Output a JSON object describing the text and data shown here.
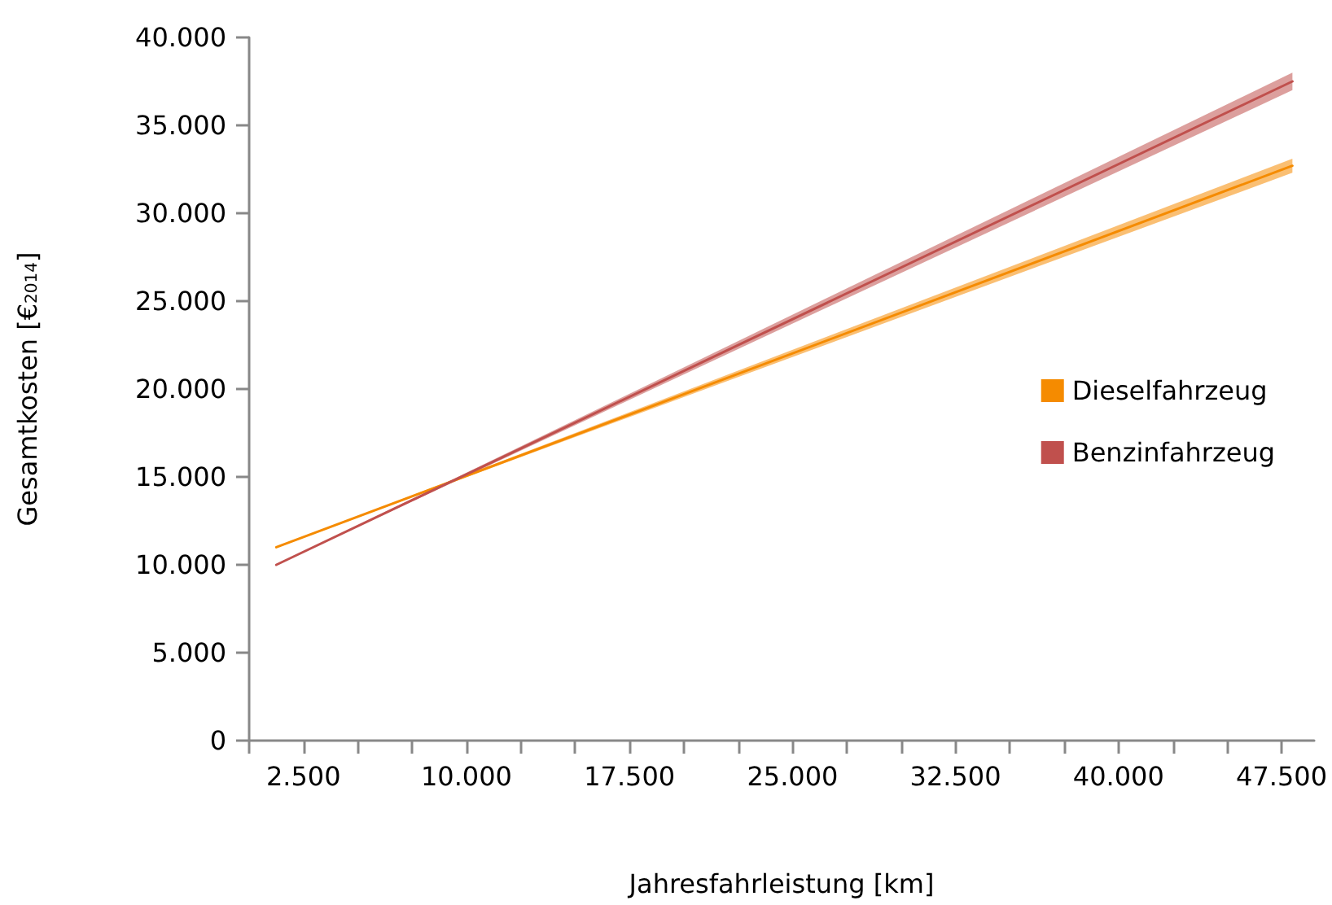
{
  "chart_data": {
    "type": "line",
    "xlabel": "Jahresfahrleistung [km]",
    "ylabel": "Gesamtkosten [€$_{2014}$]",
    "x": [
      1250,
      48000
    ],
    "series": [
      {
        "name": "Dieselfahrzeug",
        "color": "#f58b00",
        "values": [
          11000,
          32700
        ],
        "lower": [
          11000,
          32300
        ],
        "upper": [
          11000,
          33100
        ]
      },
      {
        "name": "Benzinfahrzeug",
        "color": "#c0504d",
        "values": [
          10000,
          37500
        ],
        "lower": [
          10000,
          37000
        ],
        "upper": [
          10000,
          38000
        ]
      }
    ],
    "xlim": [
      0,
      49000
    ],
    "xticks": [
      {
        "value": 0,
        "label": null
      },
      {
        "value": 2500,
        "label": "2.500"
      },
      {
        "value": 5000,
        "label": null
      },
      {
        "value": 7500,
        "label": null
      },
      {
        "value": 10000,
        "label": "10.000"
      },
      {
        "value": 12500,
        "label": null
      },
      {
        "value": 15000,
        "label": null
      },
      {
        "value": 17500,
        "label": "17.500"
      },
      {
        "value": 20000,
        "label": null
      },
      {
        "value": 22500,
        "label": null
      },
      {
        "value": 25000,
        "label": "25.000"
      },
      {
        "value": 27500,
        "label": null
      },
      {
        "value": 30000,
        "label": null
      },
      {
        "value": 32500,
        "label": "32.500"
      },
      {
        "value": 35000,
        "label": null
      },
      {
        "value": 37500,
        "label": null
      },
      {
        "value": 40000,
        "label": "40.000"
      },
      {
        "value": 42500,
        "label": null
      },
      {
        "value": 45000,
        "label": null
      },
      {
        "value": 47500,
        "label": "47.500"
      }
    ],
    "ylim": [
      0,
      40000
    ],
    "yticks": [
      {
        "value": 0,
        "label": "0"
      },
      {
        "value": 5000,
        "label": "5.000"
      },
      {
        "value": 10000,
        "label": "10.000"
      },
      {
        "value": 15000,
        "label": "15.000"
      },
      {
        "value": 20000,
        "label": "20.000"
      },
      {
        "value": 25000,
        "label": "25.000"
      },
      {
        "value": 30000,
        "label": "30.000"
      },
      {
        "value": 35000,
        "label": "35.000"
      },
      {
        "value": 40000,
        "label": "40.000"
      }
    ],
    "grid": false,
    "legend": "right",
    "marker": "none"
  }
}
